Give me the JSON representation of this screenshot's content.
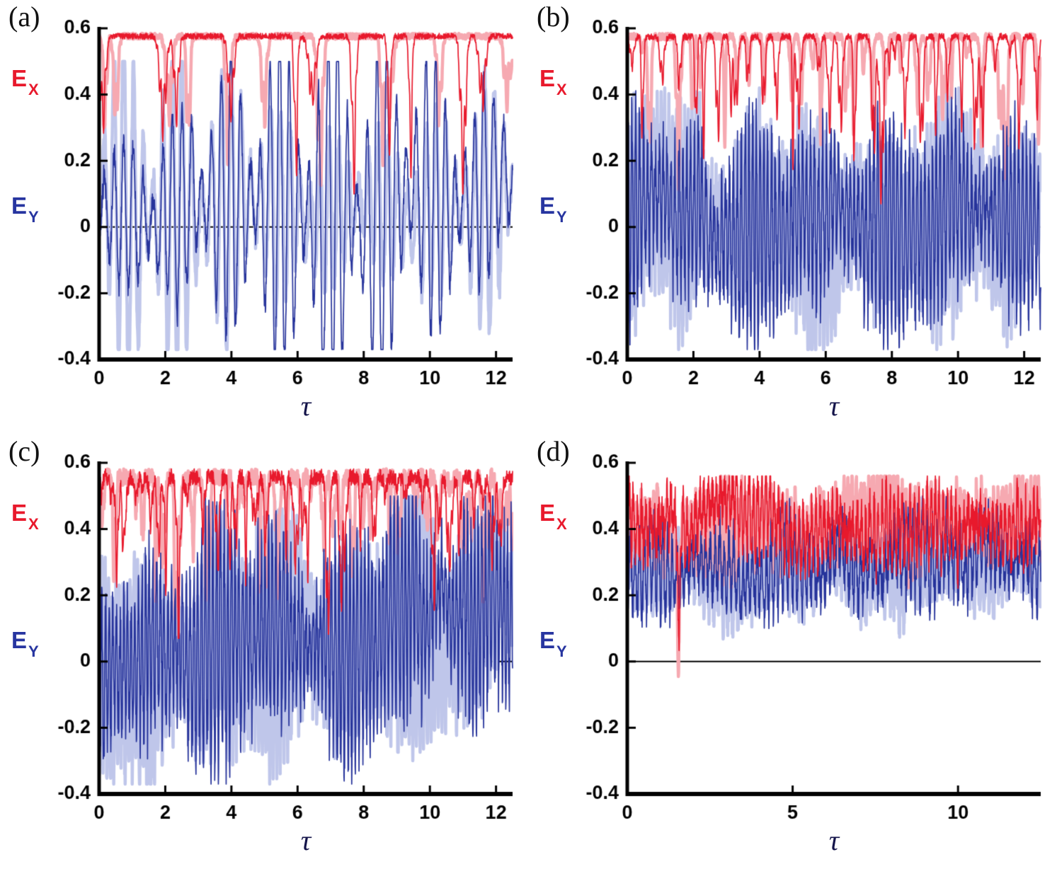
{
  "chart_data": [
    {
      "type": "line",
      "panel": "(a)",
      "xlabel": "τ",
      "xlim": [
        0,
        12.5
      ],
      "ylim": [
        -0.4,
        0.6
      ],
      "xticks": [
        0,
        2,
        4,
        6,
        8,
        10,
        12
      ],
      "yticks": [
        -0.4,
        -0.2,
        0,
        0.2,
        0.4,
        0.6
      ],
      "zero_line": 0,
      "series_labels": [
        {
          "main": "E",
          "sub": "X"
        },
        {
          "main": "E",
          "sub": "Y"
        }
      ],
      "series": [
        {
          "name": "E_X",
          "color": "#e8192c",
          "light_color": "#f6a9b1",
          "behavior": "plateau near 0.58 with quasi-periodic dips to ~0.1 every ~1.55 tau",
          "gen": {
            "mode": "dips",
            "seed": 2,
            "top": 0.585,
            "topNoise": 0.018,
            "period": 1.55,
            "start": 0.15,
            "jitter": 0.45,
            "depthMin": 0.22,
            "depthMax": 0.5,
            "width": 0.1,
            "doubleProb": 0.35,
            "min": 0.01,
            "max": 0.6,
            "n": 1500
          }
        },
        {
          "name": "E_Y",
          "color": "#26339b",
          "light_color": "#bfc6ea",
          "behavior": "quasi-periodic oscillation bursts between -0.36 and 0.5, period ~1.55 tau",
          "gen": {
            "mode": "osc",
            "seed": 5,
            "burst": true,
            "burstPeriod": 1.56,
            "fastFreq": 3.4,
            "amp": 0.44,
            "base": 0.06,
            "noise": 0.07,
            "wobble": 0.35,
            "min": -0.37,
            "max": 0.5,
            "n": 1600
          }
        }
      ]
    },
    {
      "type": "line",
      "panel": "(b)",
      "xlabel": "τ",
      "xlim": [
        0,
        12.5
      ],
      "ylim": [
        -0.4,
        0.6
      ],
      "xticks": [
        0,
        2,
        4,
        6,
        8,
        10,
        12
      ],
      "yticks": [
        -0.4,
        -0.2,
        0,
        0.2,
        0.4,
        0.6
      ],
      "zero_line": 0,
      "series_labels": [
        {
          "main": "E",
          "sub": "X"
        },
        {
          "main": "E",
          "sub": "Y"
        }
      ],
      "series": [
        {
          "name": "E_X",
          "color": "#e8192c",
          "light_color": "#f6a9b1",
          "behavior": "top envelope near 0.58 with dense irregular spikes down to ~0.1-0.3",
          "gen": {
            "mode": "dips",
            "seed": 9,
            "top": 0.585,
            "topNoise": 0.02,
            "period": 0.42,
            "start": 0.1,
            "jitter": 0.3,
            "depthMin": 0.05,
            "depthMax": 0.42,
            "width": 0.06,
            "doubleProb": 0.25,
            "min": 0.07,
            "max": 0.6,
            "n": 1700
          }
        },
        {
          "name": "E_Y",
          "color": "#26339b",
          "light_color": "#bfc6ea",
          "behavior": "dense chaotic oscillation between -0.35 and 0.35 around zero",
          "gen": {
            "mode": "osc",
            "seed": 4,
            "fastFreq": 8.5,
            "amp": 0.25,
            "base": 0.0,
            "baseSlope": 0.004,
            "noise": 0.15,
            "wobble": 0.45,
            "min": -0.37,
            "max": 0.42,
            "n": 1700
          }
        }
      ]
    },
    {
      "type": "line",
      "panel": "(c)",
      "xlabel": "τ",
      "xlim": [
        0,
        12.5
      ],
      "ylim": [
        -0.4,
        0.6
      ],
      "xticks": [
        0,
        2,
        4,
        6,
        8,
        10,
        12
      ],
      "yticks": [
        -0.4,
        -0.2,
        0,
        0.2,
        0.4,
        0.6
      ],
      "zero_line": 0,
      "series_labels": [
        {
          "main": "E",
          "sub": "X"
        },
        {
          "main": "E",
          "sub": "Y"
        }
      ],
      "series": [
        {
          "name": "E_X",
          "color": "#e8192c",
          "light_color": "#f6a9b1",
          "behavior": "thick band 0.5-0.59 with spikes to ~0.1 early, dips shrinking with tau",
          "gen": {
            "mode": "dips",
            "seed": 13,
            "top": 0.582,
            "topNoise": 0.05,
            "period": 0.32,
            "start": 0.1,
            "jitter": 0.25,
            "depthMin": 0.04,
            "depthMax": 0.48,
            "width": 0.055,
            "doubleProb": 0.3,
            "depthDecay": 0.45,
            "min": 0.07,
            "max": 0.6,
            "n": 1700
          }
        },
        {
          "name": "E_Y",
          "color": "#26339b",
          "light_color": "#bfc6ea",
          "behavior": "dense chaotic oscillation -0.35 to 0.45, mean drifting upward to ~0.15",
          "gen": {
            "mode": "osc",
            "seed": 21,
            "fastFreq": 9,
            "amp": 0.28,
            "base": -0.01,
            "baseSlope": 0.013,
            "noise": 0.16,
            "wobble": 0.5,
            "min": -0.37,
            "max": 0.5,
            "n": 1700
          }
        }
      ]
    },
    {
      "type": "line",
      "panel": "(d)",
      "xlabel": "τ",
      "xlim": [
        0,
        12.5
      ],
      "ylim": [
        -0.4,
        0.6
      ],
      "xticks": [
        0,
        5,
        10
      ],
      "yticks": [
        -0.4,
        -0.2,
        0,
        0.2,
        0.4,
        0.6
      ],
      "zero_line": 0,
      "series_labels": [
        {
          "main": "E",
          "sub": "X"
        },
        {
          "main": "E",
          "sub": "Y"
        }
      ],
      "series": [
        {
          "name": "E_X",
          "color": "#e8192c",
          "light_color": "#f6a9b1",
          "behavior": "band around 0.3-0.55 centered ~0.42, one deep dip to ~-0.07 near tau=1.5",
          "gen": {
            "mode": "osc",
            "seed": 31,
            "fastFreq": 8,
            "amp": 0.085,
            "base": 0.42,
            "noise": 0.12,
            "wobble": 0.3,
            "min": -0.09,
            "max": 0.56,
            "events": [
              {
                "t": 1.55,
                "d": 0.5,
                "w": 0.06
              }
            ],
            "n": 1700
          }
        },
        {
          "name": "E_Y",
          "color": "#26339b",
          "light_color": "#bfc6ea",
          "behavior": "band around 0.1-0.45 centered ~0.3, stays above zero",
          "gen": {
            "mode": "osc",
            "seed": 37,
            "fastFreq": 7,
            "amp": 0.1,
            "base": 0.29,
            "noise": 0.12,
            "wobble": 0.3,
            "min": 0.03,
            "max": 0.5,
            "n": 1700
          }
        }
      ]
    }
  ]
}
